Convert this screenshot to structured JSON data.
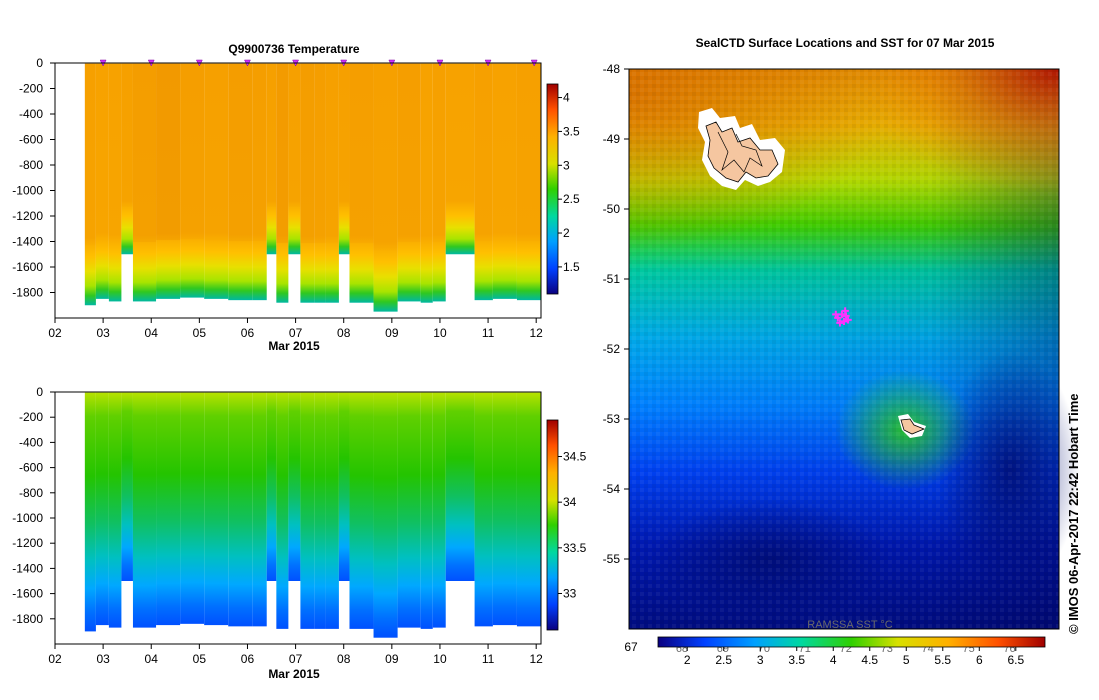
{
  "chart_data": [
    {
      "type": "heatmap",
      "title": "Q9900736  Temperature",
      "xlabel": "Mar 2015",
      "x_ticks": [
        "02",
        "03",
        "04",
        "05",
        "06",
        "07",
        "08",
        "09",
        "10",
        "11",
        "12"
      ],
      "xlim": [
        2,
        12.1
      ],
      "y_ticks": [
        "0",
        "-200",
        "-400",
        "-600",
        "-800",
        "-1000",
        "-1200",
        "-1400",
        "-1600",
        "-1800"
      ],
      "ylim": [
        -2000,
        0
      ],
      "colorbar_ticks": [
        "1.5",
        "2",
        "2.5",
        "3",
        "3.5",
        "4"
      ],
      "colorbar_range": [
        1.1,
        4.2
      ],
      "profile_markers_days": [
        3.0,
        4.0,
        5.0,
        6.0,
        7.0,
        8.0,
        9.0,
        10.0,
        11.0,
        12.0
      ],
      "profiles": [
        {
          "start": 2.62,
          "end": 2.85,
          "max_depth": 1900,
          "value": 3.3
        },
        {
          "start": 2.85,
          "end": 3.12,
          "max_depth": 1850,
          "value": 3.2
        },
        {
          "start": 3.12,
          "end": 3.38,
          "max_depth": 1870,
          "value": 3.25
        },
        {
          "start": 3.38,
          "end": 3.62,
          "max_depth": 1500,
          "value": 3.3
        },
        {
          "start": 3.62,
          "end": 4.1,
          "max_depth": 1870,
          "value": 3.4
        },
        {
          "start": 4.1,
          "end": 4.6,
          "max_depth": 1850,
          "value": 3.5
        },
        {
          "start": 4.6,
          "end": 5.1,
          "max_depth": 1840,
          "value": 3.35
        },
        {
          "start": 5.1,
          "end": 5.6,
          "max_depth": 1850,
          "value": 3.3
        },
        {
          "start": 5.6,
          "end": 6.1,
          "max_depth": 1860,
          "value": 3.4
        },
        {
          "start": 6.1,
          "end": 6.4,
          "max_depth": 1860,
          "value": 3.35
        },
        {
          "start": 6.4,
          "end": 6.6,
          "max_depth": 1500,
          "value": 3.3
        },
        {
          "start": 6.6,
          "end": 6.85,
          "max_depth": 1880,
          "value": 3.45
        },
        {
          "start": 6.85,
          "end": 7.1,
          "max_depth": 1500,
          "value": 3.3
        },
        {
          "start": 7.1,
          "end": 7.4,
          "max_depth": 1880,
          "value": 3.4
        },
        {
          "start": 7.4,
          "end": 7.62,
          "max_depth": 1880,
          "value": 3.35
        },
        {
          "start": 7.62,
          "end": 7.9,
          "max_depth": 1880,
          "value": 3.3
        },
        {
          "start": 7.9,
          "end": 8.12,
          "max_depth": 1500,
          "value": 3.3
        },
        {
          "start": 8.12,
          "end": 8.62,
          "max_depth": 1880,
          "value": 3.35
        },
        {
          "start": 8.62,
          "end": 9.12,
          "max_depth": 1950,
          "value": 3.3
        },
        {
          "start": 9.12,
          "end": 9.6,
          "max_depth": 1870,
          "value": 3.35
        },
        {
          "start": 9.6,
          "end": 9.85,
          "max_depth": 1880,
          "value": 3.25
        },
        {
          "start": 9.85,
          "end": 10.12,
          "max_depth": 1870,
          "value": 3.3
        },
        {
          "start": 10.12,
          "end": 10.72,
          "max_depth": 1500,
          "value": 3.25
        },
        {
          "start": 10.72,
          "end": 11.1,
          "max_depth": 1860,
          "value": 3.3
        },
        {
          "start": 11.1,
          "end": 11.6,
          "max_depth": 1850,
          "value": 3.25
        },
        {
          "start": 11.6,
          "end": 12.1,
          "max_depth": 1860,
          "value": 3.3
        }
      ]
    },
    {
      "type": "heatmap",
      "title": "",
      "xlabel": "Mar 2015",
      "x_ticks": [
        "02",
        "03",
        "04",
        "05",
        "06",
        "07",
        "08",
        "09",
        "10",
        "11",
        "12"
      ],
      "xlim": [
        2,
        12.1
      ],
      "y_ticks": [
        "0",
        "-200",
        "-400",
        "-600",
        "-800",
        "-1000",
        "-1200",
        "-1400",
        "-1600",
        "-1800"
      ],
      "ylim": [
        -2000,
        0
      ],
      "colorbar_ticks": [
        "33",
        "33.5",
        "34",
        "34.5"
      ],
      "colorbar_range": [
        32.6,
        34.9
      ],
      "profiles": [
        {
          "start": 2.62,
          "end": 2.85,
          "max_depth": 1900
        },
        {
          "start": 2.85,
          "end": 3.12,
          "max_depth": 1850
        },
        {
          "start": 3.12,
          "end": 3.38,
          "max_depth": 1870
        },
        {
          "start": 3.38,
          "end": 3.62,
          "max_depth": 1500
        },
        {
          "start": 3.62,
          "end": 4.1,
          "max_depth": 1870
        },
        {
          "start": 4.1,
          "end": 4.6,
          "max_depth": 1850
        },
        {
          "start": 4.6,
          "end": 5.1,
          "max_depth": 1840
        },
        {
          "start": 5.1,
          "end": 5.6,
          "max_depth": 1850
        },
        {
          "start": 5.6,
          "end": 6.1,
          "max_depth": 1860
        },
        {
          "start": 6.1,
          "end": 6.4,
          "max_depth": 1860
        },
        {
          "start": 6.4,
          "end": 6.6,
          "max_depth": 1500
        },
        {
          "start": 6.6,
          "end": 6.85,
          "max_depth": 1880
        },
        {
          "start": 6.85,
          "end": 7.1,
          "max_depth": 1500
        },
        {
          "start": 7.1,
          "end": 7.4,
          "max_depth": 1880
        },
        {
          "start": 7.4,
          "end": 7.62,
          "max_depth": 1880
        },
        {
          "start": 7.62,
          "end": 7.9,
          "max_depth": 1880
        },
        {
          "start": 7.9,
          "end": 8.12,
          "max_depth": 1500
        },
        {
          "start": 8.12,
          "end": 8.62,
          "max_depth": 1880
        },
        {
          "start": 8.62,
          "end": 9.12,
          "max_depth": 1950
        },
        {
          "start": 9.12,
          "end": 9.6,
          "max_depth": 1870
        },
        {
          "start": 9.6,
          "end": 9.85,
          "max_depth": 1880
        },
        {
          "start": 9.85,
          "end": 10.12,
          "max_depth": 1870
        },
        {
          "start": 10.12,
          "end": 10.72,
          "max_depth": 1500
        },
        {
          "start": 10.72,
          "end": 11.1,
          "max_depth": 1860
        },
        {
          "start": 11.1,
          "end": 11.6,
          "max_depth": 1850
        },
        {
          "start": 11.6,
          "end": 12.1,
          "max_depth": 1860
        }
      ]
    },
    {
      "type": "heatmap",
      "title": "SealCTD Surface Locations and SST for 07 Mar 2015",
      "y_ticks": [
        "-48",
        "-49",
        "-50",
        "-51",
        "-52",
        "-53",
        "-54",
        "-55"
      ],
      "ylim": [
        -56,
        -48
      ],
      "x_ticks": [
        "67",
        "68",
        "69",
        "70",
        "71",
        "72",
        "73",
        "74",
        "75",
        "76"
      ],
      "xlim": [
        67,
        77.5
      ],
      "colorbar_ticks": [
        "2",
        "2.5",
        "3",
        "3.5",
        "4",
        "4.5",
        "5",
        "5.5",
        "6",
        "6.5"
      ],
      "colorbar_range": [
        1.6,
        6.9
      ],
      "colorbar_label": "RAMSSA SST °C",
      "credit": "© IMOS 06-Apr-2017 22:42 Hobart Time",
      "seal_locations": [
        {
          "lon": 72.1,
          "lat": -51.55
        },
        {
          "lon": 72.2,
          "lat": -51.5
        },
        {
          "lon": 72.25,
          "lat": -51.6
        },
        {
          "lon": 72.3,
          "lat": -51.52
        },
        {
          "lon": 72.35,
          "lat": -51.58
        },
        {
          "lon": 72.15,
          "lat": -51.62
        },
        {
          "lon": 72.05,
          "lat": -51.5
        },
        {
          "lon": 72.28,
          "lat": -51.45
        }
      ],
      "colors": {
        "land": "#f5c6a0",
        "seal_marker": "#ff33ff"
      }
    }
  ]
}
